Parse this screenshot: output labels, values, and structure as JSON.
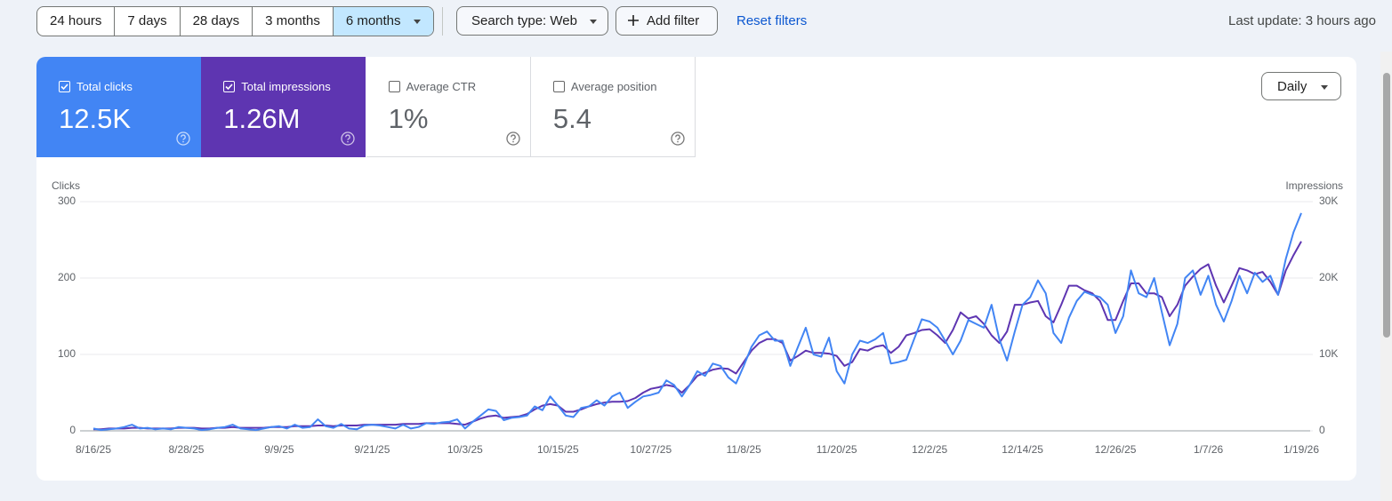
{
  "filters": {
    "ranges": [
      "24 hours",
      "7 days",
      "28 days",
      "3 months",
      "6 months"
    ],
    "search_type": "Search type: Web",
    "add_filter": "Add filter",
    "reset": "Reset filters",
    "last_update": "Last update: 3 hours ago"
  },
  "metrics": [
    {
      "label": "Total clicks",
      "value": "12.5K",
      "checked": true,
      "color": "#4285f4"
    },
    {
      "label": "Total impressions",
      "value": "1.26M",
      "checked": true,
      "color": "#5e35b1"
    },
    {
      "label": "Average CTR",
      "value": "1%",
      "checked": false
    },
    {
      "label": "Average position",
      "value": "5.4",
      "checked": false
    }
  ],
  "granularity": "Daily",
  "chart_data": {
    "type": "line",
    "y_label": "Clicks",
    "y2_label": "Impressions",
    "categories": [
      "8/16/25",
      null,
      null,
      null,
      null,
      null,
      null,
      null,
      null,
      null,
      null,
      null,
      "8/28/25",
      null,
      null,
      null,
      null,
      null,
      null,
      null,
      null,
      null,
      null,
      null,
      "9/9/25",
      null,
      null,
      null,
      null,
      null,
      null,
      null,
      null,
      null,
      null,
      null,
      "9/21/25",
      null,
      null,
      null,
      null,
      null,
      null,
      null,
      null,
      null,
      null,
      null,
      "10/3/25",
      null,
      null,
      null,
      null,
      null,
      null,
      null,
      null,
      null,
      null,
      null,
      "10/15/25",
      null,
      null,
      null,
      null,
      null,
      null,
      null,
      null,
      null,
      null,
      null,
      "10/27/25",
      null,
      null,
      null,
      null,
      null,
      null,
      null,
      null,
      null,
      null,
      null,
      "11/8/25",
      null,
      null,
      null,
      null,
      null,
      null,
      null,
      null,
      null,
      null,
      null,
      "11/20/25",
      null,
      null,
      null,
      null,
      null,
      null,
      null,
      null,
      null,
      null,
      null,
      "12/2/25",
      null,
      null,
      null,
      null,
      null,
      null,
      null,
      null,
      null,
      null,
      null,
      "12/14/25",
      null,
      null,
      null,
      null,
      null,
      null,
      null,
      null,
      null,
      null,
      null,
      "12/26/25",
      null,
      null,
      null,
      null,
      null,
      null,
      null,
      null,
      null,
      null,
      null,
      "1/7/26",
      null,
      null,
      null,
      null,
      null,
      null,
      null,
      null,
      null,
      null,
      null,
      "1/19/26"
    ],
    "ylim": [
      0,
      300
    ],
    "yticks": [
      0,
      100,
      200,
      300
    ],
    "y2lim": [
      0,
      30000
    ],
    "y2ticks": [
      0,
      {
        "value": 10000,
        "label": "10K"
      },
      {
        "value": 20000,
        "label": "20K"
      },
      {
        "value": 30000,
        "label": "30K"
      }
    ],
    "grid": true,
    "series": [
      {
        "color": "#4285f4",
        "values": [
          3,
          1,
          2,
          3,
          5,
          8,
          3,
          4,
          2,
          3,
          2,
          5,
          4,
          3,
          1,
          2,
          4,
          5,
          8,
          3,
          2,
          1,
          3,
          5,
          6,
          3,
          8,
          4,
          5,
          15,
          6,
          4,
          9,
          3,
          2,
          7,
          8,
          7,
          5,
          3,
          8,
          3,
          5,
          10,
          9,
          11,
          12,
          15,
          3,
          12,
          20,
          28,
          26,
          14,
          17,
          18,
          20,
          32,
          27,
          45,
          33,
          20,
          18,
          30,
          32,
          40,
          33,
          45,
          50,
          30,
          38,
          45,
          47,
          50,
          66,
          60,
          45,
          60,
          78,
          72,
          88,
          85,
          70,
          62,
          85,
          110,
          125,
          130,
          118,
          118,
          85,
          110,
          135,
          100,
          97,
          122,
          78,
          62,
          100,
          118,
          115,
          120,
          128,
          88,
          90,
          93,
          120,
          146,
          143,
          135,
          118,
          100,
          118,
          145,
          140,
          135,
          165,
          120,
          92,
          130,
          165,
          175,
          197,
          180,
          128,
          115,
          148,
          170,
          182,
          178,
          175,
          165,
          128,
          150,
          210,
          180,
          175,
          200,
          155,
          112,
          140,
          200,
          210,
          178,
          203,
          165,
          143,
          170,
          203,
          180,
          207,
          195,
          203,
          178,
          225,
          260,
          285
        ]
      },
      {
        "color": "#5e35b1",
        "axis": "y2",
        "values": [
          200,
          200,
          300,
          300,
          300,
          400,
          400,
          300,
          300,
          300,
          300,
          400,
          400,
          400,
          300,
          300,
          400,
          400,
          500,
          400,
          400,
          400,
          400,
          500,
          500,
          500,
          600,
          600,
          600,
          700,
          700,
          600,
          700,
          700,
          700,
          800,
          800,
          800,
          800,
          800,
          900,
          900,
          900,
          1000,
          1000,
          1000,
          1000,
          900,
          800,
          1200,
          1600,
          1900,
          2000,
          1700,
          1800,
          1900,
          2200,
          2800,
          3300,
          3500,
          3300,
          2500,
          2500,
          2800,
          3200,
          3500,
          3700,
          3800,
          3800,
          3900,
          4300,
          5000,
          5500,
          5700,
          6000,
          5800,
          5000,
          6000,
          7200,
          7600,
          8000,
          8200,
          8100,
          7500,
          9000,
          10500,
          11500,
          12000,
          12000,
          11500,
          9200,
          9800,
          10500,
          10200,
          10200,
          10100,
          9800,
          8500,
          9000,
          10700,
          10500,
          11000,
          11200,
          10200,
          11000,
          12500,
          12800,
          13200,
          13300,
          12500,
          11500,
          13200,
          15500,
          14700,
          15000,
          14000,
          12500,
          11500,
          13000,
          16500,
          16500,
          16800,
          17000,
          15000,
          14200,
          16500,
          19000,
          19000,
          18400,
          18000,
          17000,
          14500,
          14500,
          17000,
          19300,
          19300,
          18000,
          18000,
          17500,
          15000,
          16500,
          19000,
          20200,
          21200,
          21800,
          19000,
          16800,
          19000,
          21300,
          21000,
          20500,
          20800,
          19500,
          17800,
          21000,
          23000,
          24800
        ]
      }
    ]
  }
}
